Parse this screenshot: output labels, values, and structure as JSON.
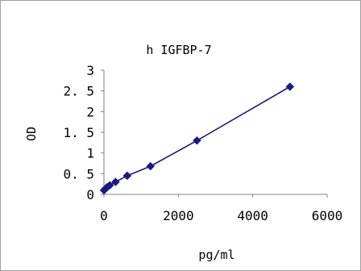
{
  "chart_data": {
    "type": "line",
    "title": "h IGFBP-7",
    "xlabel": "pg/ml",
    "ylabel": "OD",
    "xlim": [
      0,
      6000
    ],
    "ylim": [
      0,
      3
    ],
    "x_ticks": [
      0,
      2000,
      4000,
      6000
    ],
    "x_tick_labels": [
      "0",
      "2000",
      "4000",
      "6000"
    ],
    "y_ticks": [
      0,
      0.5,
      1,
      1.5,
      2,
      2.5,
      3
    ],
    "y_tick_labels": [
      "0",
      "0. 5",
      "1",
      "1. 5",
      "2",
      "2. 5",
      "3"
    ],
    "grid": false,
    "legend": "none",
    "colors": {
      "series": "#1a1a80",
      "axis": "#808080",
      "text": "#000000",
      "frame": "#a0a0a0"
    },
    "series": [
      {
        "marker": "diamond",
        "x": [
          0,
          39,
          78,
          156,
          312,
          625,
          1250,
          2500,
          5000
        ],
        "y": [
          0.1,
          0.13,
          0.17,
          0.22,
          0.3,
          0.45,
          0.68,
          1.3,
          2.6
        ]
      }
    ]
  }
}
